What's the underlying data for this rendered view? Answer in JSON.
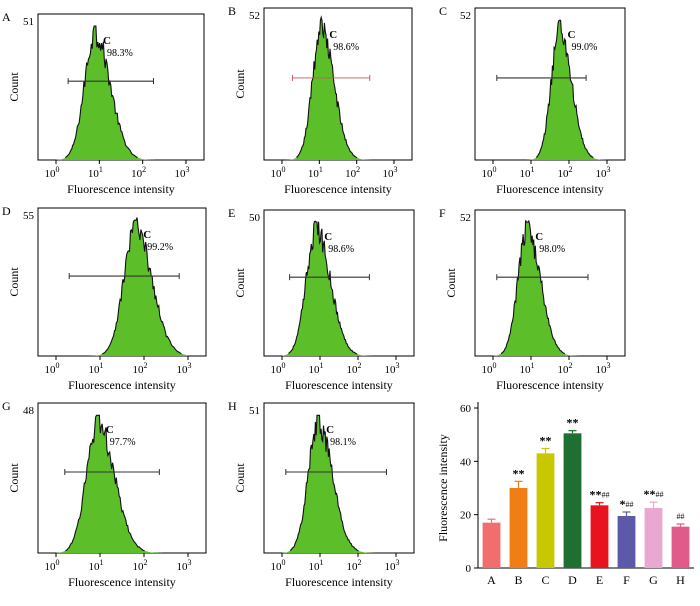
{
  "chart_data": [
    {
      "type": "histogram",
      "panel_label": "A",
      "ylabel": "Count",
      "xlabel": "Fluorescence intensity",
      "y_max_label": "51",
      "gate_label": "C",
      "gate_percent": "98.3%",
      "x_ticks": [
        {
          "base": "10",
          "exp": "0"
        },
        {
          "base": "10",
          "exp": "1"
        },
        {
          "base": "10",
          "exp": "2"
        },
        {
          "base": "10",
          "exp": "3"
        }
      ],
      "peak_log10": 0.9,
      "width_log10": 0.28,
      "gate_log10": [
        0.28,
        2.25
      ],
      "fill_color": "#5cbf2a"
    },
    {
      "type": "histogram",
      "panel_label": "B",
      "ylabel": "Count",
      "xlabel": "Fluorescence intensity",
      "y_max_label": "52",
      "gate_label": "C",
      "gate_percent": "98.6%",
      "x_ticks": [
        {
          "base": "10",
          "exp": "0"
        },
        {
          "base": "10",
          "exp": "1"
        },
        {
          "base": "10",
          "exp": "2"
        },
        {
          "base": "10",
          "exp": "3"
        }
      ],
      "peak_log10": 1.05,
      "width_log10": 0.27,
      "gate_log10": [
        0.28,
        2.35
      ],
      "fill_color": "#5cbf2a"
    },
    {
      "type": "histogram",
      "panel_label": "C",
      "ylabel": "",
      "xlabel": "Fluorescence intensity",
      "y_max_label": "52",
      "gate_label": "C",
      "gate_percent": "99.0%",
      "x_ticks": [
        {
          "base": "10",
          "exp": "0"
        },
        {
          "base": "10",
          "exp": "1"
        },
        {
          "base": "10",
          "exp": "2"
        },
        {
          "base": "10",
          "exp": "3"
        }
      ],
      "peak_log10": 1.75,
      "width_log10": 0.25,
      "gate_log10": [
        0.1,
        2.45
      ],
      "fill_color": "#5cbf2a"
    },
    {
      "type": "histogram",
      "panel_label": "D",
      "ylabel": "Count",
      "xlabel": "Fluorescence intensity",
      "y_max_label": "55",
      "gate_label": "C",
      "gate_percent": "99.2%",
      "x_ticks": [
        {
          "base": "10",
          "exp": "0"
        },
        {
          "base": "10",
          "exp": "1"
        },
        {
          "base": "10",
          "exp": "2"
        },
        {
          "base": "10",
          "exp": "3"
        }
      ],
      "peak_log10": 1.8,
      "width_log10": 0.3,
      "gate_log10": [
        0.3,
        2.8
      ],
      "fill_color": "#5cbf2a"
    },
    {
      "type": "histogram",
      "panel_label": "E",
      "ylabel": "Count",
      "xlabel": "Fluorescence intensity",
      "y_max_label": "50",
      "gate_label": "C",
      "gate_percent": "98.6%",
      "x_ticks": [
        {
          "base": "10",
          "exp": "0"
        },
        {
          "base": "10",
          "exp": "1"
        },
        {
          "base": "10",
          "exp": "2"
        },
        {
          "base": "10",
          "exp": "3"
        }
      ],
      "peak_log10": 0.9,
      "width_log10": 0.3,
      "gate_log10": [
        0.2,
        2.3
      ],
      "fill_color": "#5cbf2a"
    },
    {
      "type": "histogram",
      "panel_label": "F",
      "ylabel": "Count",
      "xlabel": "Fluorescence intensity",
      "y_max_label": "52",
      "gate_label": "C",
      "gate_percent": "98.0%",
      "x_ticks": [
        {
          "base": "10",
          "exp": "0"
        },
        {
          "base": "10",
          "exp": "1"
        },
        {
          "base": "10",
          "exp": "2"
        },
        {
          "base": "10",
          "exp": "3"
        }
      ],
      "peak_log10": 0.9,
      "width_log10": 0.28,
      "gate_log10": [
        0.1,
        2.5
      ],
      "fill_color": "#5cbf2a"
    },
    {
      "type": "histogram",
      "panel_label": "G",
      "ylabel": "Count",
      "xlabel": "Fluorescence intensity",
      "y_max_label": "48",
      "gate_label": "C",
      "gate_percent": "97.7%",
      "x_ticks": [
        {
          "base": "10",
          "exp": "0"
        },
        {
          "base": "10",
          "exp": "1"
        },
        {
          "base": "10",
          "exp": "2"
        },
        {
          "base": "10",
          "exp": "3"
        }
      ],
      "peak_log10": 0.95,
      "width_log10": 0.3,
      "gate_log10": [
        0.2,
        2.35
      ],
      "fill_color": "#5cbf2a"
    },
    {
      "type": "histogram",
      "panel_label": "H",
      "ylabel": "Count",
      "xlabel": "Fluorescence intensity",
      "y_max_label": "51",
      "gate_label": "C",
      "gate_percent": "98.1%",
      "x_ticks": [
        {
          "base": "10",
          "exp": "0"
        },
        {
          "base": "10",
          "exp": "1"
        },
        {
          "base": "10",
          "exp": "2"
        },
        {
          "base": "10",
          "exp": "3"
        }
      ],
      "peak_log10": 0.95,
      "width_log10": 0.3,
      "gate_log10": [
        0.1,
        2.75
      ],
      "fill_color": "#5cbf2a"
    },
    {
      "type": "bar",
      "ylabel": "Fluorescence intensity",
      "ylim": [
        0,
        60
      ],
      "yticks": [
        0,
        20,
        40,
        60
      ],
      "categories": [
        "A",
        "B",
        "C",
        "D",
        "E",
        "F",
        "G",
        "H"
      ],
      "values": [
        17,
        30,
        43,
        50.5,
        23.5,
        19.5,
        22.5,
        15.5
      ],
      "errors": [
        1.3,
        2.5,
        1.8,
        1.0,
        1.0,
        1.5,
        2.2,
        1.0
      ],
      "annotations": [
        "",
        "**",
        "**",
        "**",
        "**##",
        "*##",
        "**##",
        "##"
      ],
      "colors": [
        "#f26e6e",
        "#f07e15",
        "#c8c800",
        "#1f6e32",
        "#e8131f",
        "#5c5aa8",
        "#e8a8d2",
        "#e05a8a"
      ]
    }
  ]
}
